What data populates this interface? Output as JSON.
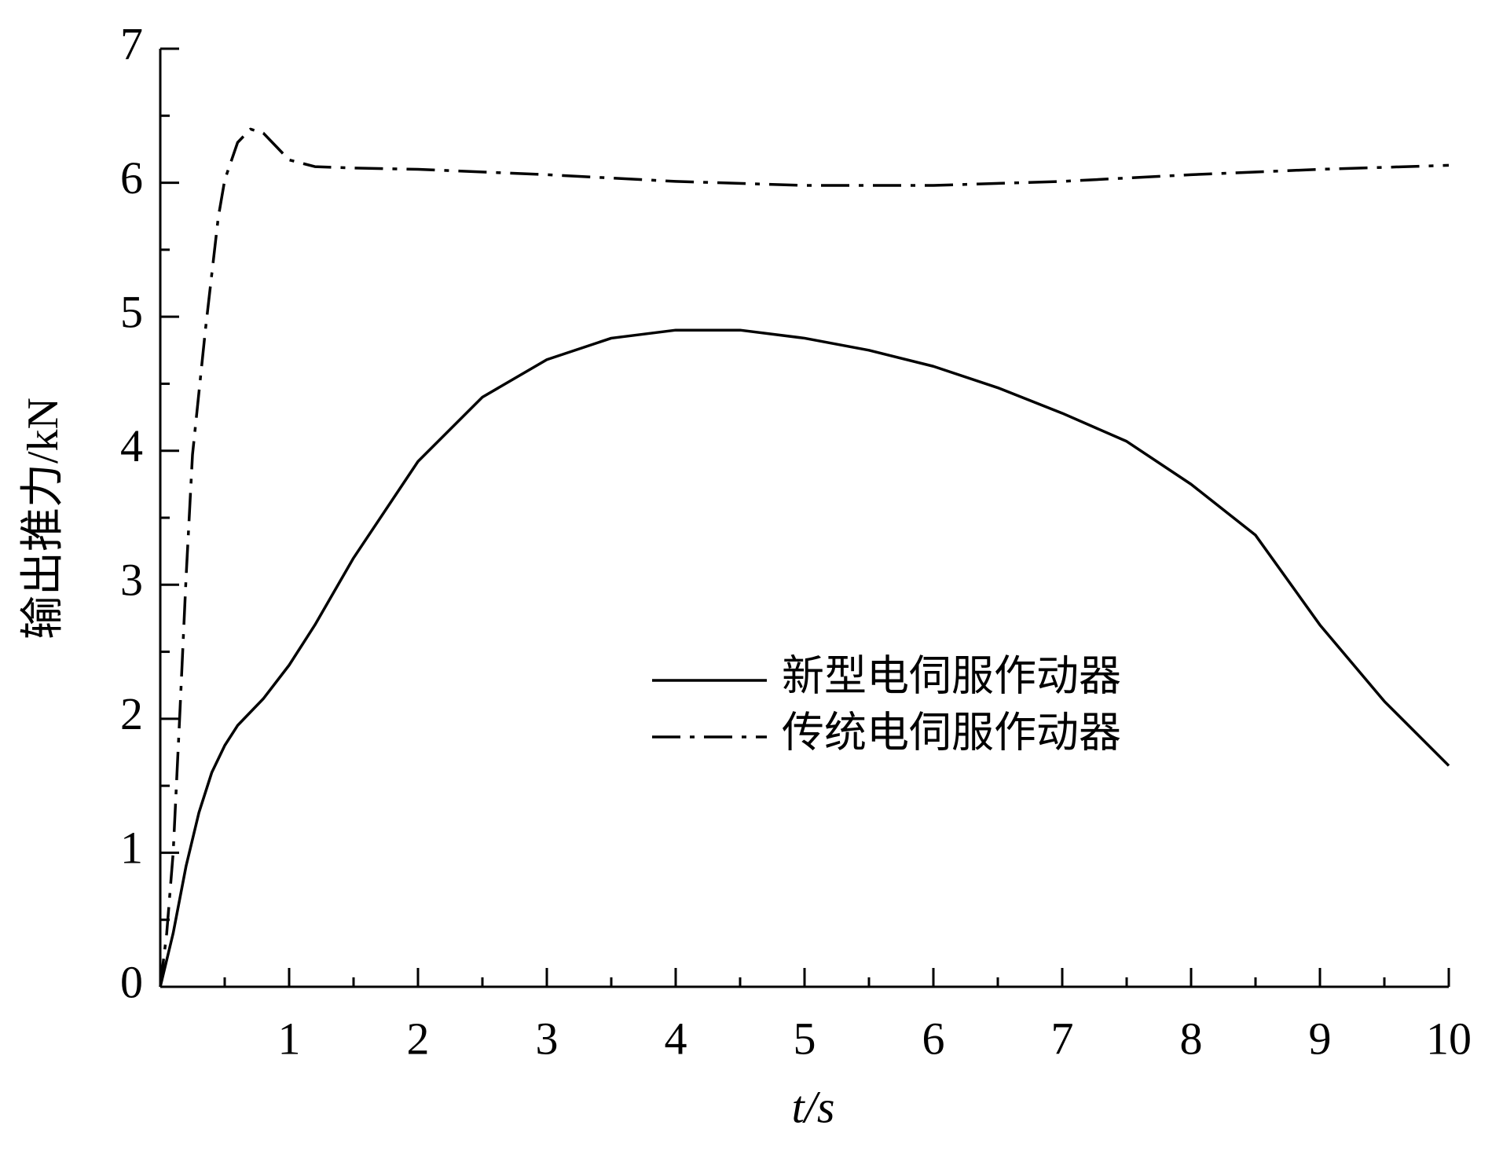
{
  "chart_data": {
    "type": "line",
    "xlabel": "t/s",
    "ylabel": "输出推力/kN",
    "xlim": [
      0,
      10
    ],
    "ylim": [
      0,
      7
    ],
    "xticks": [
      1,
      2,
      3,
      4,
      5,
      6,
      7,
      8,
      9,
      10
    ],
    "yticks": [
      0,
      1,
      2,
      3,
      4,
      5,
      6,
      7
    ],
    "grid": false,
    "series": [
      {
        "name": "新型电伺服作动器",
        "color": "#000000",
        "dash": "solid",
        "x": [
          0,
          0.1,
          0.2,
          0.3,
          0.4,
          0.5,
          0.6,
          0.8,
          1,
          1.2,
          1.5,
          2,
          2.5,
          3,
          3.5,
          4,
          4.5,
          5,
          5.5,
          6,
          6.5,
          7,
          7.5,
          8,
          8.5,
          9,
          9.5,
          10
        ],
        "values": [
          0,
          0.4,
          0.9,
          1.3,
          1.6,
          1.8,
          1.95,
          2.15,
          2.4,
          2.7,
          3.2,
          3.92,
          4.4,
          4.68,
          4.84,
          4.9,
          4.9,
          4.84,
          4.75,
          4.63,
          4.47,
          4.28,
          4.07,
          3.75,
          3.37,
          2.7,
          2.13,
          1.65
        ]
      },
      {
        "name": "传统电伺服作动器",
        "color": "#000000",
        "dash": "dashdot",
        "x": [
          0,
          0.05,
          0.1,
          0.15,
          0.2,
          0.25,
          0.35,
          0.45,
          0.5,
          0.6,
          0.7,
          0.8,
          0.9,
          1,
          1.2,
          1.5,
          2,
          3,
          4,
          5,
          6,
          7,
          8,
          9,
          10
        ],
        "values": [
          0,
          0.4,
          1.0,
          2.0,
          3.05,
          3.97,
          4.9,
          5.74,
          6.02,
          6.3,
          6.4,
          6.37,
          6.27,
          6.17,
          6.12,
          6.11,
          6.1,
          6.06,
          6.01,
          5.98,
          5.98,
          6.01,
          6.06,
          6.1,
          6.13
        ]
      }
    ]
  }
}
